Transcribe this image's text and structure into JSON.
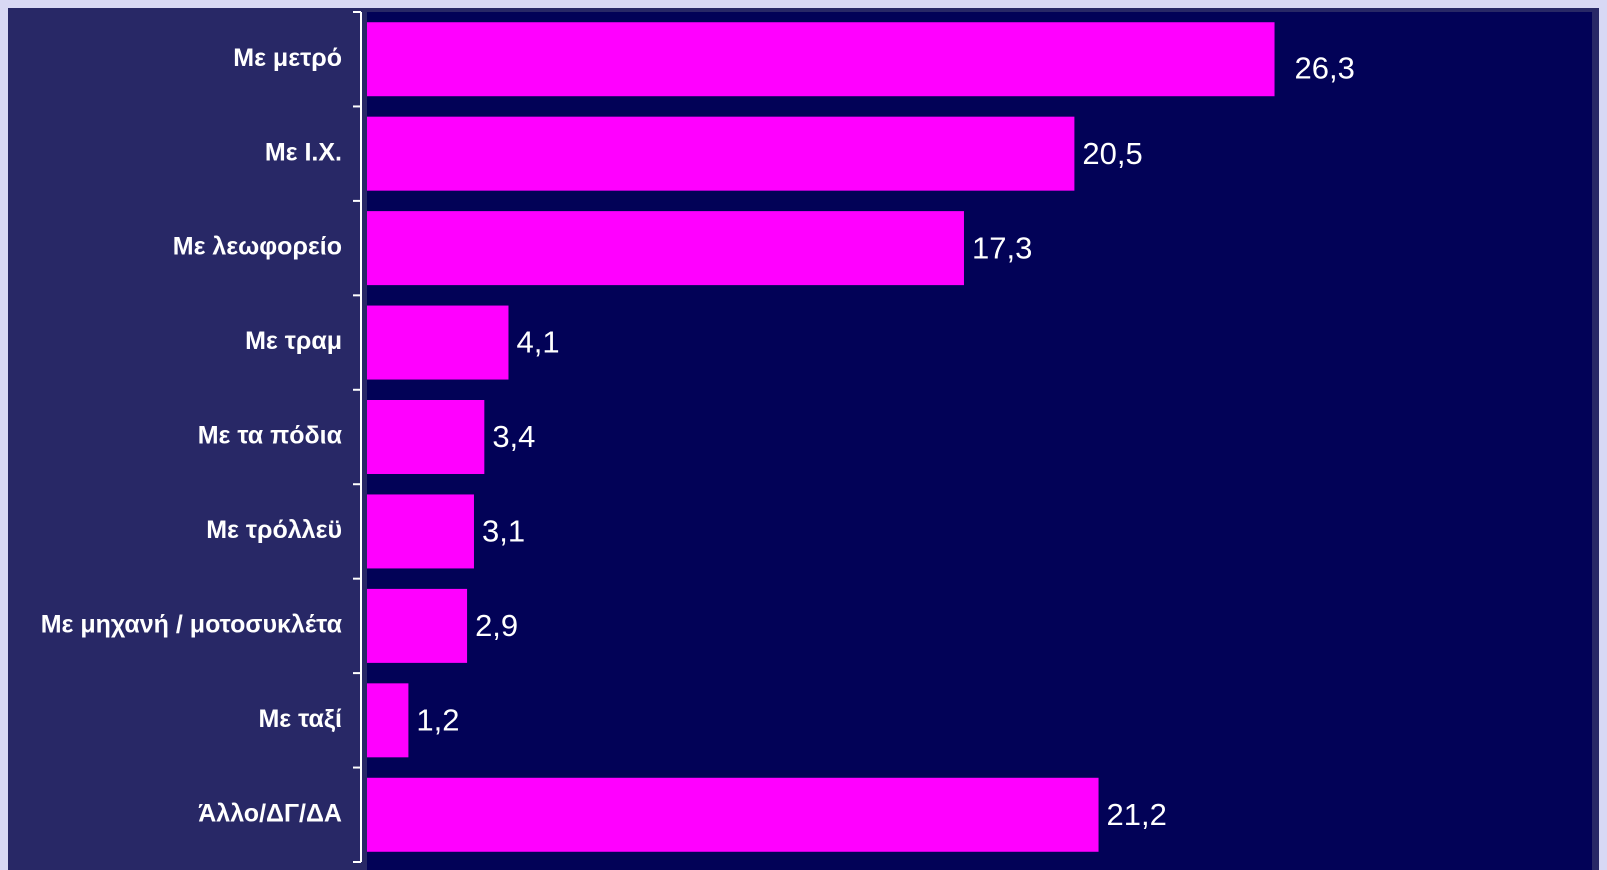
{
  "colors": {
    "page_border": "#d8d8f4",
    "frame_background": "#282866",
    "plot_background": "#020257",
    "bar": "#ff00ff",
    "text": "#ffffff"
  },
  "chart_data": {
    "type": "bar",
    "orientation": "horizontal",
    "categories": [
      "Με μετρό",
      "Με Ι.Χ.",
      "Με λεωφορείο",
      "Με τραμ",
      "Με τα πόδια",
      "Με τρόλλεϋ",
      "Με μηχανή / μοτοσυκλέτα",
      "Με ταξί",
      "Άλλο/ΔΓ/ΔΑ"
    ],
    "values": [
      26.3,
      20.5,
      17.3,
      4.1,
      3.4,
      3.1,
      2.9,
      1.2,
      21.2
    ],
    "value_labels": [
      "26,3",
      "20,5",
      "17,3",
      "4,1",
      "3,4",
      "3,1",
      "2,9",
      "1,2",
      "21,2"
    ],
    "xlim": [
      0,
      35.5
    ],
    "grid": false,
    "legend": "none"
  }
}
